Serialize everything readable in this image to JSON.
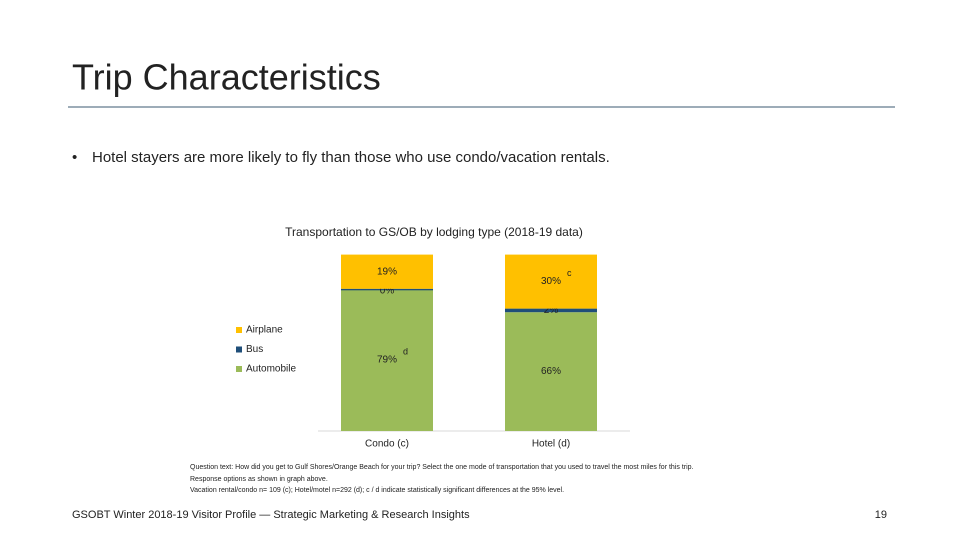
{
  "slide": {
    "title": "Trip Characteristics",
    "bullet": "Hotel stayers are more likely to fly than those who use condo/vacation rentals.",
    "notes": [
      "Question text: How did you get to Gulf Shores/Orange Beach for your trip? Select the one mode of transportation that you used to travel the most miles for this trip.",
      "Response options as shown in graph above.",
      "Vacation rental/condo n= 109 (c); Hotel/motel n=292 (d); c / d indicate statistically significant differences at the 95% level."
    ],
    "footer": "GSOBT Winter 2018-19 Visitor Profile — Strategic Marketing & Research Insights",
    "page_number": "19"
  },
  "chart_data": {
    "type": "stacked-bar",
    "title": "Transportation to GS/OB by lodging type (2018-19 data)",
    "categories": [
      "Condo (c)",
      "Hotel (d)"
    ],
    "series": [
      {
        "name": "Automobile",
        "color": "#9bbb59",
        "values": [
          79,
          66
        ],
        "value_labels": [
          "79%",
          "66%"
        ],
        "annotations": [
          "d",
          null
        ]
      },
      {
        "name": "Bus",
        "color": "#1f4e79",
        "values": [
          0,
          2
        ],
        "value_labels": [
          "0%",
          "2%"
        ],
        "annotations": [
          null,
          null
        ]
      },
      {
        "name": "Airplane",
        "color": "#ffc000",
        "values": [
          19,
          30
        ],
        "value_labels": [
          "19%",
          "30%"
        ],
        "annotations": [
          null,
          "c"
        ]
      }
    ],
    "ylim": [
      0,
      100
    ]
  }
}
